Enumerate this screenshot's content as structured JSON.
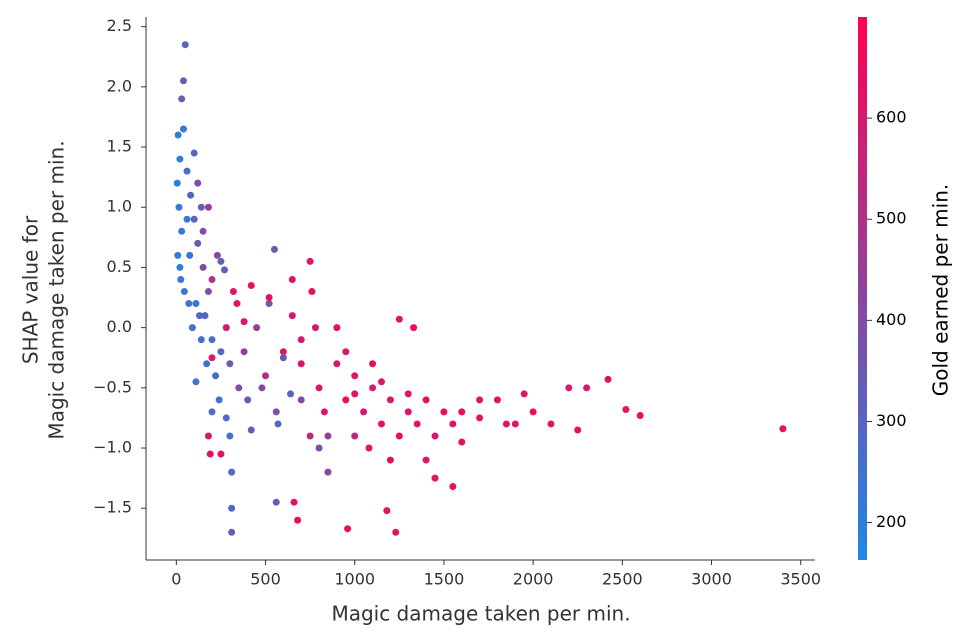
{
  "chart_data": {
    "type": "scatter",
    "xlabel": "Magic damage taken per min.",
    "ylabel": [
      "SHAP value for",
      "Magic damage taken per min."
    ],
    "colorbar_label": "Gold earned per min.",
    "colormap": [
      "#1e88e5",
      "#ff0052"
    ],
    "clim": [
      163,
      700
    ],
    "cticks": [
      200,
      300,
      400,
      500,
      600
    ],
    "xlim": [
      -170,
      3580
    ],
    "xticks": [
      0,
      500,
      1000,
      1500,
      2000,
      2500,
      3000,
      3500
    ],
    "ylim": [
      -1.93,
      2.58
    ],
    "yticks": [
      {
        "value": -1.5,
        "label": "−1.5"
      },
      {
        "value": -1,
        "label": "−1.0"
      },
      {
        "value": -0.5,
        "label": "−0.5"
      },
      {
        "value": 0,
        "label": "0.0"
      },
      0.5,
      {
        "value": 1,
        "label": "1.0"
      },
      1.5,
      {
        "value": 2,
        "label": "2.0"
      },
      2.5
    ],
    "x": [
      10,
      20,
      5,
      15,
      30,
      8,
      25,
      40,
      50,
      40,
      30,
      60,
      80,
      100,
      120,
      150,
      180,
      70,
      90,
      130,
      200,
      250,
      220,
      300,
      350,
      400,
      300,
      310,
      310,
      310,
      560,
      570,
      550,
      520,
      450,
      500,
      600,
      650,
      700,
      750,
      800,
      850,
      900,
      950,
      1000,
      1050,
      1100,
      1150,
      1200,
      1250,
      1300,
      1350,
      1400,
      1450,
      1500,
      1550,
      1600,
      1700,
      1800,
      1900,
      2000,
      2100,
      2200,
      2250,
      2300,
      2420,
      2520,
      2600,
      3400,
      1330,
      1250,
      1400,
      1450,
      1550,
      1230,
      960,
      1180,
      680,
      660,
      250,
      190,
      180,
      200,
      250,
      270,
      600,
      640,
      420,
      800,
      850,
      1080,
      1100,
      750,
      900,
      950,
      1000,
      1200,
      700,
      560,
      480,
      380,
      340,
      380,
      160,
      140,
      110,
      200,
      240,
      150,
      180,
      200,
      230,
      120,
      100,
      60,
      20,
      45,
      75,
      140,
      110,
      170,
      280,
      320,
      420,
      520,
      280,
      650,
      700,
      760,
      780,
      830,
      1000,
      1150,
      1300,
      1600,
      1700,
      1850,
      1950
    ],
    "values": [
      1.6,
      1.4,
      1.2,
      1.0,
      0.8,
      0.6,
      0.4,
      1.65,
      2.35,
      2.05,
      1.9,
      1.3,
      1.1,
      0.9,
      0.7,
      0.5,
      0.3,
      0.2,
      0.0,
      0.1,
      -0.1,
      -0.2,
      -0.4,
      -0.3,
      -0.5,
      -0.6,
      -0.9,
      -1.2,
      -1.5,
      -1.7,
      -1.45,
      -0.8,
      0.65,
      0.2,
      0.0,
      -0.4,
      -0.2,
      0.4,
      -0.1,
      0.55,
      -0.5,
      -0.9,
      -0.3,
      -0.6,
      -0.4,
      -0.7,
      -0.3,
      -0.8,
      -0.6,
      -0.9,
      -0.7,
      -0.8,
      -0.6,
      -0.9,
      -0.7,
      -0.8,
      -0.7,
      -0.75,
      -0.6,
      -0.8,
      -0.7,
      -0.8,
      -0.5,
      -0.85,
      -0.5,
      -0.43,
      -0.68,
      -0.73,
      -0.84,
      0.0,
      0.07,
      -1.1,
      -1.25,
      -1.32,
      -1.7,
      -1.67,
      -1.52,
      -1.6,
      -1.45,
      -1.05,
      -1.05,
      -0.9,
      -0.25,
      0.55,
      0.48,
      -0.25,
      -0.55,
      -0.85,
      -1.0,
      -1.2,
      -1.0,
      -0.5,
      -0.9,
      0.0,
      -0.2,
      -0.9,
      -1.1,
      -0.6,
      -0.7,
      -0.5,
      -0.2,
      0.2,
      0.05,
      0.1,
      -0.1,
      -0.45,
      -0.7,
      -0.6,
      0.8,
      1.0,
      0.4,
      0.6,
      1.2,
      1.45,
      0.9,
      0.5,
      0.3,
      0.6,
      1.0,
      0.2,
      -0.3,
      -0.75,
      0.3,
      0.35,
      0.25,
      0.0,
      0.1,
      -0.3,
      0.3,
      0.0,
      -0.7,
      -0.55,
      -0.45,
      -0.55,
      -0.95,
      -0.6,
      -0.8,
      -0.55
    ],
    "color_values": [
      200,
      210,
      190,
      220,
      230,
      200,
      240,
      230,
      300,
      350,
      330,
      260,
      300,
      310,
      350,
      400,
      380,
      250,
      260,
      280,
      270,
      300,
      260,
      350,
      400,
      330,
      250,
      280,
      300,
      320,
      330,
      300,
      350,
      380,
      450,
      520,
      600,
      620,
      600,
      650,
      600,
      450,
      600,
      650,
      620,
      600,
      650,
      640,
      600,
      650,
      620,
      640,
      650,
      600,
      640,
      620,
      650,
      630,
      640,
      620,
      650,
      640,
      600,
      650,
      620,
      640,
      650,
      640,
      650,
      650,
      640,
      630,
      640,
      650,
      640,
      650,
      620,
      650,
      640,
      620,
      650,
      600,
      610,
      330,
      320,
      350,
      300,
      350,
      400,
      420,
      620,
      600,
      550,
      640,
      600,
      550,
      640,
      400,
      380,
      420,
      450,
      620,
      600,
      300,
      260,
      250,
      280,
      250,
      380,
      450,
      500,
      420,
      400,
      300,
      230,
      200,
      220,
      240,
      330,
      220,
      240,
      260,
      620,
      640,
      620,
      600,
      600,
      620,
      640,
      600,
      630,
      640,
      600,
      630,
      640,
      620,
      640,
      620
    ]
  }
}
